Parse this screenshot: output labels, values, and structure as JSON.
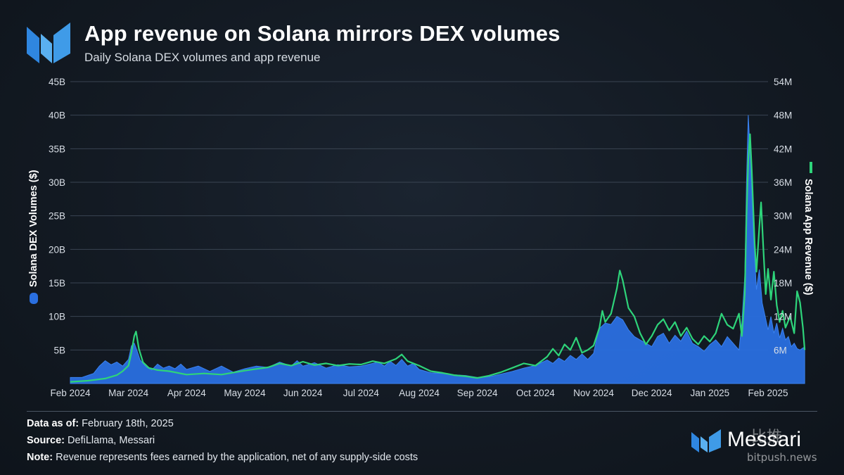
{
  "header": {
    "title": "App revenue on Solana mirrors DEX volumes",
    "subtitle": "Daily Solana DEX volumes and app revenue"
  },
  "footer": {
    "data_as_of_label": "Data as of:",
    "data_as_of_value": "February 18th, 2025",
    "source_label": "Source:",
    "source_value": "DefiLlama, Messari",
    "note_label": "Note:",
    "note_value": "Revenue represents fees earned by the application, net of any supply-side costs",
    "brand": "Messari",
    "watermark_cn": "比推",
    "watermark": "bitpush.news"
  },
  "colors": {
    "volume_fill": "#2a6fe0",
    "revenue_line": "#2ed47a",
    "grid": "#3a4452",
    "axis_text": "#d8dee6"
  },
  "chart_data": {
    "type": "area",
    "title": "App revenue on Solana mirrors DEX volumes",
    "subtitle": "Daily Solana DEX volumes and app revenue",
    "x_tick_labels": [
      "Feb 2024",
      "Mar 2024",
      "Apr 2024",
      "May 2024",
      "Jun 2024",
      "Jul 2024",
      "Aug 2024",
      "Sep 2024",
      "Oct 2024",
      "Nov 2024",
      "Dec 2024",
      "Jan 2025",
      "Feb 2025"
    ],
    "y_left": {
      "label": "Solana DEX Volumes ($)",
      "lim": [
        0,
        45
      ],
      "unit": "B",
      "ticks": [
        "5B",
        "10B",
        "15B",
        "20B",
        "25B",
        "30B",
        "35B",
        "40B",
        "45B"
      ]
    },
    "y_right": {
      "label": "Solana App Revenue ($)",
      "lim": [
        0,
        54
      ],
      "unit": "M",
      "ticks": [
        "6M",
        "12M",
        "18M",
        "24M",
        "30M",
        "36M",
        "42M",
        "48M",
        "54M"
      ]
    },
    "grid": true,
    "x_unit": "months since Feb 2024",
    "series": [
      {
        "name": "Solana DEX Volumes ($)",
        "kind": "area",
        "axis": "left",
        "points": [
          [
            0,
            0.9
          ],
          [
            0.2,
            0.9
          ],
          [
            0.4,
            1.5
          ],
          [
            0.5,
            2.6
          ],
          [
            0.6,
            3.4
          ],
          [
            0.7,
            2.8
          ],
          [
            0.8,
            3.2
          ],
          [
            0.9,
            2.6
          ],
          [
            1.0,
            3.6
          ],
          [
            1.05,
            5.6
          ],
          [
            1.1,
            6.0
          ],
          [
            1.15,
            4.8
          ],
          [
            1.2,
            3.5
          ],
          [
            1.3,
            2.5
          ],
          [
            1.4,
            2.0
          ],
          [
            1.5,
            2.9
          ],
          [
            1.6,
            2.3
          ],
          [
            1.7,
            2.6
          ],
          [
            1.8,
            2.2
          ],
          [
            1.9,
            2.9
          ],
          [
            2.0,
            2.1
          ],
          [
            2.2,
            2.6
          ],
          [
            2.4,
            1.8
          ],
          [
            2.6,
            2.6
          ],
          [
            2.8,
            1.7
          ],
          [
            3.0,
            2.2
          ],
          [
            3.2,
            2.6
          ],
          [
            3.4,
            2.4
          ],
          [
            3.6,
            3.2
          ],
          [
            3.8,
            2.6
          ],
          [
            3.9,
            3.4
          ],
          [
            4.0,
            2.6
          ],
          [
            4.2,
            3.1
          ],
          [
            4.4,
            2.3
          ],
          [
            4.6,
            2.8
          ],
          [
            4.8,
            2.5
          ],
          [
            5.0,
            2.6
          ],
          [
            5.2,
            3.0
          ],
          [
            5.3,
            3.2
          ],
          [
            5.4,
            2.6
          ],
          [
            5.5,
            3.3
          ],
          [
            5.6,
            2.7
          ],
          [
            5.7,
            3.6
          ],
          [
            5.8,
            2.6
          ],
          [
            5.9,
            3.0
          ],
          [
            6.0,
            2.1
          ],
          [
            6.2,
            1.6
          ],
          [
            6.4,
            1.5
          ],
          [
            6.6,
            1.3
          ],
          [
            6.8,
            1.2
          ],
          [
            7.0,
            0.9
          ],
          [
            7.2,
            1.0
          ],
          [
            7.4,
            1.4
          ],
          [
            7.6,
            1.8
          ],
          [
            7.8,
            2.3
          ],
          [
            8.0,
            2.7
          ],
          [
            8.2,
            3.5
          ],
          [
            8.3,
            3.0
          ],
          [
            8.4,
            3.8
          ],
          [
            8.5,
            3.3
          ],
          [
            8.6,
            4.2
          ],
          [
            8.7,
            3.6
          ],
          [
            8.8,
            4.4
          ],
          [
            8.9,
            3.6
          ],
          [
            9.0,
            4.5
          ],
          [
            9.05,
            6.5
          ],
          [
            9.1,
            8.2
          ],
          [
            9.2,
            9.0
          ],
          [
            9.3,
            8.8
          ],
          [
            9.4,
            10.0
          ],
          [
            9.5,
            9.5
          ],
          [
            9.6,
            8.0
          ],
          [
            9.7,
            7.0
          ],
          [
            9.8,
            6.5
          ],
          [
            9.9,
            6.0
          ],
          [
            10.0,
            5.5
          ],
          [
            10.1,
            7.0
          ],
          [
            10.2,
            7.5
          ],
          [
            10.3,
            6.0
          ],
          [
            10.4,
            7.2
          ],
          [
            10.5,
            6.3
          ],
          [
            10.6,
            7.8
          ],
          [
            10.7,
            6.0
          ],
          [
            10.8,
            5.5
          ],
          [
            10.9,
            4.8
          ],
          [
            11.0,
            5.8
          ],
          [
            11.1,
            6.5
          ],
          [
            11.2,
            5.5
          ],
          [
            11.3,
            7.0
          ],
          [
            11.4,
            6.0
          ],
          [
            11.5,
            5.0
          ],
          [
            11.55,
            9.0
          ],
          [
            11.6,
            16.0
          ],
          [
            11.63,
            30.0
          ],
          [
            11.66,
            40.0
          ],
          [
            11.7,
            33.0
          ],
          [
            11.75,
            22.0
          ],
          [
            11.8,
            14.0
          ],
          [
            11.85,
            17.0
          ],
          [
            11.9,
            12.0
          ],
          [
            11.95,
            10.0
          ],
          [
            12.0,
            8.0
          ],
          [
            12.05,
            10.0
          ],
          [
            12.1,
            7.5
          ],
          [
            12.15,
            9.0
          ],
          [
            12.2,
            6.8
          ],
          [
            12.25,
            8.2
          ],
          [
            12.3,
            6.5
          ],
          [
            12.35,
            7.0
          ],
          [
            12.4,
            5.5
          ],
          [
            12.45,
            6.0
          ],
          [
            12.5,
            5.2
          ],
          [
            12.55,
            5.0
          ],
          [
            12.6,
            5.3
          ],
          [
            12.63,
            5.4
          ]
        ]
      },
      {
        "name": "Solana App Revenue ($)",
        "kind": "line",
        "axis": "right",
        "points": [
          [
            0,
            0.3
          ],
          [
            0.3,
            0.5
          ],
          [
            0.6,
            0.9
          ],
          [
            0.8,
            1.5
          ],
          [
            0.9,
            2.2
          ],
          [
            1.0,
            3.2
          ],
          [
            1.05,
            5.5
          ],
          [
            1.1,
            8.5
          ],
          [
            1.13,
            9.3
          ],
          [
            1.18,
            6.2
          ],
          [
            1.25,
            3.8
          ],
          [
            1.35,
            2.8
          ],
          [
            1.5,
            2.4
          ],
          [
            1.7,
            2.2
          ],
          [
            2.0,
            1.6
          ],
          [
            2.3,
            1.8
          ],
          [
            2.6,
            1.6
          ],
          [
            3.0,
            2.3
          ],
          [
            3.2,
            2.6
          ],
          [
            3.4,
            2.9
          ],
          [
            3.6,
            3.6
          ],
          [
            3.8,
            3.2
          ],
          [
            4.0,
            3.9
          ],
          [
            4.2,
            3.3
          ],
          [
            4.4,
            3.6
          ],
          [
            4.6,
            3.2
          ],
          [
            4.8,
            3.5
          ],
          [
            5.0,
            3.4
          ],
          [
            5.2,
            4.0
          ],
          [
            5.4,
            3.6
          ],
          [
            5.6,
            4.4
          ],
          [
            5.7,
            5.2
          ],
          [
            5.8,
            4.0
          ],
          [
            6.0,
            3.2
          ],
          [
            6.2,
            2.2
          ],
          [
            6.4,
            1.9
          ],
          [
            6.6,
            1.5
          ],
          [
            6.8,
            1.3
          ],
          [
            7.0,
            1.0
          ],
          [
            7.2,
            1.4
          ],
          [
            7.4,
            2.0
          ],
          [
            7.6,
            2.8
          ],
          [
            7.8,
            3.6
          ],
          [
            8.0,
            3.2
          ],
          [
            8.2,
            4.8
          ],
          [
            8.3,
            6.2
          ],
          [
            8.4,
            5.0
          ],
          [
            8.5,
            7.0
          ],
          [
            8.6,
            6.0
          ],
          [
            8.7,
            8.2
          ],
          [
            8.8,
            5.5
          ],
          [
            8.9,
            6.0
          ],
          [
            9.0,
            6.8
          ],
          [
            9.1,
            10.0
          ],
          [
            9.15,
            13.0
          ],
          [
            9.2,
            11.0
          ],
          [
            9.3,
            12.5
          ],
          [
            9.4,
            17.0
          ],
          [
            9.45,
            20.2
          ],
          [
            9.5,
            18.5
          ],
          [
            9.6,
            13.5
          ],
          [
            9.7,
            12.0
          ],
          [
            9.8,
            9.0
          ],
          [
            9.9,
            7.0
          ],
          [
            10.0,
            8.5
          ],
          [
            10.1,
            10.5
          ],
          [
            10.2,
            11.5
          ],
          [
            10.3,
            9.5
          ],
          [
            10.4,
            11.0
          ],
          [
            10.5,
            8.5
          ],
          [
            10.6,
            10.0
          ],
          [
            10.7,
            8.0
          ],
          [
            10.8,
            7.0
          ],
          [
            10.9,
            8.5
          ],
          [
            11.0,
            7.5
          ],
          [
            11.1,
            9.0
          ],
          [
            11.2,
            12.5
          ],
          [
            11.3,
            10.5
          ],
          [
            11.4,
            9.8
          ],
          [
            11.5,
            12.5
          ],
          [
            11.55,
            8.5
          ],
          [
            11.6,
            16.0
          ],
          [
            11.63,
            30.0
          ],
          [
            11.66,
            40.0
          ],
          [
            11.69,
            44.6
          ],
          [
            11.72,
            38.0
          ],
          [
            11.77,
            25.0
          ],
          [
            11.8,
            20.0
          ],
          [
            11.85,
            28.0
          ],
          [
            11.88,
            32.4
          ],
          [
            11.92,
            24.0
          ],
          [
            11.96,
            16.0
          ],
          [
            12.0,
            20.5
          ],
          [
            12.05,
            15.0
          ],
          [
            12.1,
            20.0
          ],
          [
            12.15,
            14.0
          ],
          [
            12.2,
            11.0
          ],
          [
            12.25,
            13.0
          ],
          [
            12.3,
            10.0
          ],
          [
            12.38,
            12.0
          ],
          [
            12.45,
            9.0
          ],
          [
            12.5,
            16.5
          ],
          [
            12.55,
            14.5
          ],
          [
            12.6,
            10.0
          ],
          [
            12.63,
            6.0
          ]
        ]
      }
    ]
  }
}
